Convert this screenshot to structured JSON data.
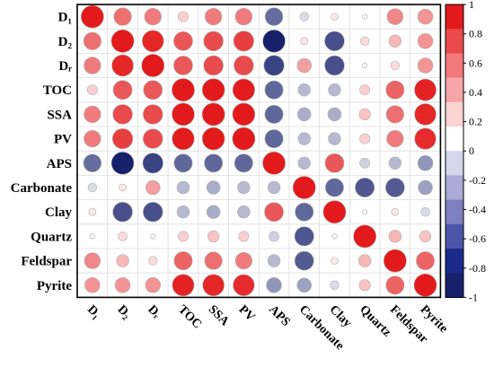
{
  "chart_data": {
    "type": "heatmap",
    "title": "",
    "variables": [
      "D₁",
      "D₂",
      "Dᵣ",
      "TOC",
      "SSA",
      "PV",
      "APS",
      "Carbonate",
      "Clay",
      "Quartz",
      "Feldspar",
      "Pyrite"
    ],
    "matrix": [
      [
        1.0,
        0.6,
        0.55,
        0.2,
        0.55,
        0.55,
        -0.62,
        -0.15,
        0.1,
        0.05,
        0.5,
        0.45
      ],
      [
        0.6,
        1.0,
        0.9,
        0.7,
        0.75,
        0.8,
        -0.98,
        0.1,
        -0.75,
        0.15,
        0.3,
        0.45
      ],
      [
        0.55,
        0.9,
        1.0,
        0.7,
        0.75,
        0.75,
        -0.8,
        0.4,
        -0.75,
        0.05,
        0.15,
        0.45
      ],
      [
        0.2,
        0.7,
        0.7,
        1.0,
        0.98,
        0.95,
        -0.65,
        -0.3,
        -0.3,
        0.2,
        0.65,
        0.92
      ],
      [
        0.55,
        0.75,
        0.75,
        0.98,
        1.0,
        0.98,
        -0.65,
        -0.35,
        -0.35,
        0.25,
        0.6,
        0.9
      ],
      [
        0.55,
        0.8,
        0.75,
        0.95,
        0.98,
        1.0,
        -0.65,
        -0.3,
        -0.3,
        0.2,
        0.55,
        0.88
      ],
      [
        -0.62,
        -0.98,
        -0.8,
        -0.65,
        -0.65,
        -0.65,
        1.0,
        -0.3,
        0.7,
        -0.2,
        -0.3,
        -0.45
      ],
      [
        -0.15,
        0.1,
        0.4,
        -0.3,
        -0.35,
        -0.3,
        -0.3,
        1.0,
        -0.65,
        -0.72,
        -0.7,
        -0.4
      ],
      [
        0.1,
        -0.75,
        -0.75,
        -0.3,
        -0.35,
        -0.3,
        0.7,
        -0.65,
        1.0,
        0.05,
        0.1,
        -0.15
      ],
      [
        0.05,
        0.15,
        0.05,
        0.2,
        0.25,
        0.2,
        -0.2,
        -0.72,
        0.05,
        1.0,
        0.3,
        0.25
      ],
      [
        0.5,
        0.3,
        0.15,
        0.65,
        0.6,
        0.55,
        -0.3,
        -0.7,
        0.1,
        0.3,
        1.0,
        0.65
      ],
      [
        0.45,
        0.45,
        0.45,
        0.92,
        0.9,
        0.88,
        -0.45,
        -0.4,
        -0.15,
        0.25,
        0.65,
        1.0
      ]
    ],
    "colorbar": {
      "range": [
        -1,
        1
      ],
      "ticks": [
        "1",
        "0.8",
        "0.6",
        "0.4",
        "0.2",
        "0",
        "-0.2",
        "-0.4",
        "-0.6",
        "-0.8",
        "-1"
      ],
      "bands": [
        "#e31a1c",
        "#eb4a4c",
        "#f2797a",
        "#f7a5a6",
        "#fbd3d3",
        "#ffffff",
        "#d5d6ec",
        "#aaabd6",
        "#7e80c0",
        "#4d55a8",
        "#1a2a8a",
        "#16206b"
      ]
    },
    "colors": {
      "positive": "#e31a1c",
      "negative": "#16206b",
      "circle_stroke": "#b0b0b0",
      "grid": "#dddddd"
    }
  }
}
